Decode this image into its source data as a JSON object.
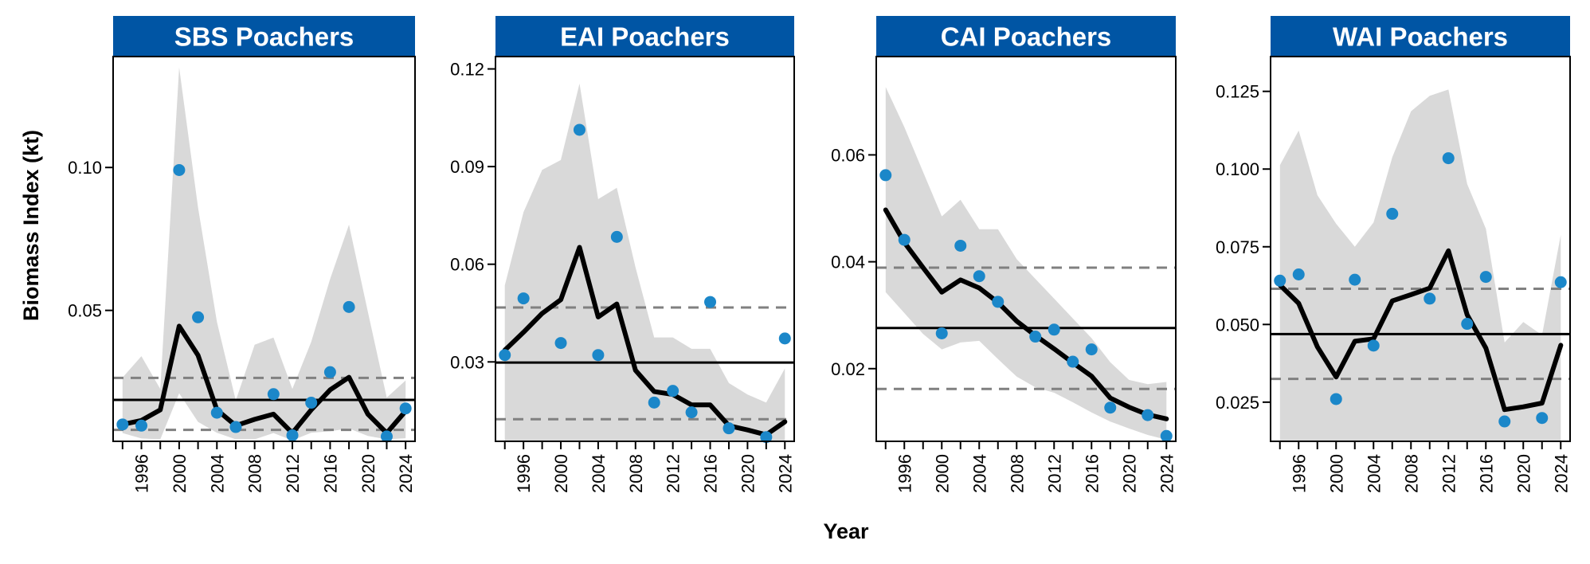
{
  "figure": {
    "ylabel": "Biomass Index (kt)",
    "xlabel": "Year",
    "colors": {
      "strip": "#0055A4",
      "points": "#1B87C9",
      "ribbon": "#D9D9D9",
      "line": "#000000",
      "mean_line": "#000000",
      "dashed": "#808080"
    }
  },
  "chart_data": [
    {
      "type": "line",
      "title": "SBS Poachers",
      "xlim": [
        1993,
        2025
      ],
      "ylim": [
        0.0042,
        0.1388
      ],
      "yticks": [
        0.05,
        0.1
      ],
      "ytick_labels": [
        "0.05",
        "0.10"
      ],
      "xticks": [
        1994,
        1996,
        1998,
        2000,
        2002,
        2004,
        2006,
        2008,
        2010,
        2012,
        2014,
        2016,
        2018,
        2020,
        2022,
        2024
      ],
      "xtick_labels": [
        "",
        "1996",
        "",
        "2000",
        "",
        "2004",
        "",
        "2008",
        "",
        "2012",
        "",
        "2016",
        "",
        "2020",
        "",
        "2024"
      ],
      "mean": 0.0187,
      "dashed": [
        0.0264,
        0.0082
      ],
      "fit": {
        "x": [
          1994,
          1996,
          1998,
          2000,
          2002,
          2004,
          2006,
          2008,
          2010,
          2012,
          2014,
          2016,
          2018,
          2020,
          2022,
          2024
        ],
        "y": [
          0.0101,
          0.0115,
          0.0152,
          0.0445,
          0.0343,
          0.0152,
          0.0097,
          0.0119,
          0.0137,
          0.0071,
          0.0152,
          0.0222,
          0.0266,
          0.0137,
          0.0071,
          0.0148
        ]
      },
      "ribbon": {
        "x": [
          1994,
          1996,
          1998,
          2000,
          2002,
          2004,
          2006,
          2008,
          2010,
          2012,
          2014,
          2016,
          2018,
          2020,
          2022,
          2024
        ],
        "upper": [
          0.0265,
          0.034,
          0.0225,
          0.135,
          0.086,
          0.046,
          0.0185,
          0.038,
          0.0405,
          0.0225,
          0.039,
          0.061,
          0.08,
          0.0495,
          0.0195,
          0.0255
        ],
        "lower": [
          0.0071,
          0.0052,
          0.0049,
          0.021,
          0.011,
          0.0072,
          0.0049,
          0.0049,
          0.0071,
          0.0045,
          0.0072,
          0.0077,
          0.0087,
          0.0061,
          0.0049,
          0.0053
        ]
      },
      "points": {
        "x": [
          1994,
          1996,
          2000,
          2002,
          2004,
          2006,
          2010,
          2012,
          2014,
          2016,
          2018,
          2022,
          2024
        ],
        "y": [
          0.0101,
          0.0097,
          0.0991,
          0.0476,
          0.0142,
          0.0092,
          0.0207,
          0.0063,
          0.0177,
          0.0284,
          0.0512,
          0.0059,
          0.0157
        ]
      }
    },
    {
      "type": "line",
      "title": "EAI Poachers",
      "xlim": [
        1993,
        2025
      ],
      "ylim": [
        0.0056,
        0.1238
      ],
      "yticks": [
        0.03,
        0.06,
        0.09,
        0.12
      ],
      "ytick_labels": [
        "0.03",
        "0.06",
        "0.09",
        "0.12"
      ],
      "xticks": [
        1994,
        1996,
        1998,
        2000,
        2002,
        2004,
        2006,
        2008,
        2010,
        2012,
        2014,
        2016,
        2018,
        2020,
        2022,
        2024
      ],
      "xtick_labels": [
        "",
        "1996",
        "",
        "2000",
        "",
        "2004",
        "",
        "2008",
        "",
        "2012",
        "",
        "2016",
        "",
        "2020",
        "",
        "2024"
      ],
      "mean": 0.0298,
      "dashed": [
        0.0467,
        0.0124
      ],
      "fit": {
        "x": [
          1994,
          1996,
          1998,
          2000,
          2002,
          2004,
          2006,
          2008,
          2010,
          2012,
          2014,
          2016,
          2018,
          2020,
          2022,
          2024
        ],
        "y": [
          0.0336,
          0.0391,
          0.0449,
          0.0491,
          0.0652,
          0.0438,
          0.0478,
          0.0274,
          0.0209,
          0.02,
          0.0168,
          0.0168,
          0.0104,
          0.0091,
          0.0076,
          0.0116
        ]
      },
      "ribbon": {
        "x": [
          1994,
          1996,
          1998,
          2000,
          2002,
          2004,
          2006,
          2008,
          2010,
          2012,
          2014,
          2016,
          2018,
          2020,
          2022,
          2024
        ],
        "upper": [
          0.0535,
          0.076,
          0.089,
          0.092,
          0.1155,
          0.08,
          0.0835,
          0.059,
          0.0375,
          0.0375,
          0.034,
          0.034,
          0.0235,
          0.02,
          0.0175,
          0.028
        ]
      },
      "points": {
        "x": [
          1994,
          1996,
          2000,
          2002,
          2004,
          2006,
          2010,
          2012,
          2014,
          2016,
          2018,
          2022,
          2024
        ],
        "y": [
          0.0321,
          0.0495,
          0.0358,
          0.1013,
          0.0321,
          0.0684,
          0.0175,
          0.0211,
          0.0145,
          0.0484,
          0.0096,
          0.0069,
          0.0372
        ]
      }
    },
    {
      "type": "line",
      "title": "CAI Poachers",
      "xlim": [
        1993,
        2025
      ],
      "ylim": [
        0.0064,
        0.0784
      ],
      "yticks": [
        0.02,
        0.04,
        0.06
      ],
      "ytick_labels": [
        "0.02",
        "0.04",
        "0.06"
      ],
      "xticks": [
        1994,
        1996,
        1998,
        2000,
        2002,
        2004,
        2006,
        2008,
        2010,
        2012,
        2014,
        2016,
        2018,
        2020,
        2022,
        2024
      ],
      "xtick_labels": [
        "",
        "1996",
        "",
        "2000",
        "",
        "2004",
        "",
        "2008",
        "",
        "2012",
        "",
        "2016",
        "",
        "2020",
        "",
        "2024"
      ],
      "mean": 0.0276,
      "dashed": [
        0.0389,
        0.0162
      ],
      "fit": {
        "x": [
          1994,
          1996,
          1998,
          2000,
          2002,
          2004,
          2006,
          2008,
          2010,
          2012,
          2014,
          2016,
          2018,
          2020,
          2022,
          2024
        ],
        "y": [
          0.0497,
          0.0436,
          0.0389,
          0.0343,
          0.0366,
          0.0351,
          0.0324,
          0.0289,
          0.0262,
          0.0237,
          0.0211,
          0.0186,
          0.0145,
          0.0128,
          0.0114,
          0.0106
        ]
      },
      "ribbon": {
        "x": [
          1994,
          1996,
          1998,
          2000,
          2002,
          2004,
          2006,
          2008,
          2010,
          2012,
          2014,
          2016,
          2018,
          2020,
          2022,
          2024
        ],
        "upper": [
          0.0727,
          0.0652,
          0.0568,
          0.0485,
          0.0516,
          0.0461,
          0.0461,
          0.0405,
          0.0368,
          0.0331,
          0.0294,
          0.0257,
          0.0212,
          0.0179,
          0.0171,
          0.0175
        ],
        "lower": [
          0.0343,
          0.0304,
          0.0265,
          0.0236,
          0.0249,
          0.0252,
          0.0218,
          0.0185,
          0.0165,
          0.0155,
          0.0137,
          0.0118,
          0.0101,
          0.0088,
          0.0076,
          0.0067
        ]
      },
      "points": {
        "x": [
          1994,
          1996,
          2000,
          2002,
          2004,
          2006,
          2010,
          2012,
          2014,
          2016,
          2018,
          2022,
          2024
        ],
        "y": [
          0.0562,
          0.0441,
          0.0266,
          0.043,
          0.0373,
          0.0325,
          0.026,
          0.0273,
          0.0213,
          0.0236,
          0.0127,
          0.0113,
          0.0074
        ]
      }
    },
    {
      "type": "line",
      "title": "WAI Poachers",
      "xlim": [
        1993,
        2025
      ],
      "ylim": [
        0.0124,
        0.1362
      ],
      "yticks": [
        0.025,
        0.05,
        0.075,
        0.1,
        0.125
      ],
      "ytick_labels": [
        "0.025",
        "0.050",
        "0.075",
        "0.100",
        "0.125"
      ],
      "xticks": [
        1994,
        1996,
        1998,
        2000,
        2002,
        2004,
        2006,
        2008,
        2010,
        2012,
        2014,
        2016,
        2018,
        2020,
        2022,
        2024
      ],
      "xtick_labels": [
        "",
        "1996",
        "",
        "2000",
        "",
        "2004",
        "",
        "2008",
        "",
        "2012",
        "",
        "2016",
        "",
        "2020",
        "",
        "2024"
      ],
      "mean": 0.0469,
      "dashed": [
        0.0615,
        0.0325
      ],
      "fit": {
        "x": [
          1994,
          1996,
          1998,
          2000,
          2002,
          2004,
          2006,
          2008,
          2010,
          2012,
          2014,
          2016,
          2018,
          2020,
          2022,
          2024
        ],
        "y": [
          0.0627,
          0.0568,
          0.0428,
          0.0331,
          0.0446,
          0.0454,
          0.0576,
          0.0596,
          0.0617,
          0.0737,
          0.0531,
          0.0424,
          0.0226,
          0.0235,
          0.0247,
          0.0433
        ]
      },
      "ribbon": {
        "x": [
          1994,
          1996,
          1998,
          2000,
          2002,
          2004,
          2006,
          2008,
          2010,
          2012,
          2014,
          2016,
          2018,
          2020,
          2022,
          2024
        ],
        "upper": [
          0.1013,
          0.1124,
          0.0916,
          0.0824,
          0.075,
          0.0828,
          0.1038,
          0.1186,
          0.1236,
          0.1256,
          0.0952,
          0.0808,
          0.0442,
          0.0508,
          0.0466,
          0.0788
        ]
      },
      "points": {
        "x": [
          1994,
          1996,
          2000,
          2002,
          2004,
          2006,
          2010,
          2012,
          2014,
          2016,
          2018,
          2022,
          2024
        ],
        "y": [
          0.0641,
          0.0661,
          0.026,
          0.0644,
          0.0432,
          0.0856,
          0.0583,
          0.1035,
          0.0502,
          0.0653,
          0.0188,
          0.0199,
          0.0636
        ]
      }
    }
  ]
}
